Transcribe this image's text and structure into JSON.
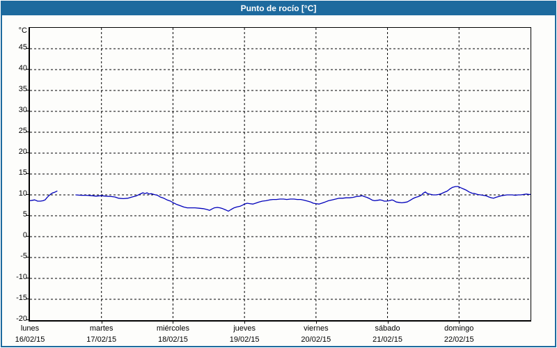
{
  "window": {
    "title": "Punto de rocío [°C]"
  },
  "chart_data": {
    "type": "line",
    "title": "Punto de rocío [°C]",
    "grid": {
      "style": "dashed",
      "color": "#000000"
    },
    "colors": {
      "frame": "#1d6a9e",
      "header_bg": "#1d6a9e",
      "header_text": "#ffffff",
      "line": "#0000bb",
      "plot_bg": "#fdfdfb",
      "axis": "#000000"
    },
    "y_axis": {
      "label": "°C",
      "range": [
        -20,
        50
      ],
      "ticks": [
        45,
        40,
        35,
        30,
        25,
        20,
        15,
        10,
        5,
        0,
        -5,
        -10,
        -15,
        -20
      ]
    },
    "x_axis": {
      "range_hours": [
        0,
        168
      ],
      "days": [
        {
          "name": "lunes",
          "date": "16/02/15"
        },
        {
          "name": "martes",
          "date": "17/02/15"
        },
        {
          "name": "miércoles",
          "date": "18/02/15"
        },
        {
          "name": "jueves",
          "date": "19/02/15"
        },
        {
          "name": "viernes",
          "date": "20/02/15"
        },
        {
          "name": "sábado",
          "date": "21/02/15"
        },
        {
          "name": "domingo",
          "date": "22/02/15"
        }
      ]
    },
    "series": [
      {
        "name": "Punto de rocío",
        "unit": "°C",
        "color": "#0000bb",
        "segments": [
          [
            [
              0,
              8.6
            ],
            [
              0.8,
              8.7
            ],
            [
              1.6,
              8.8
            ],
            [
              2.6,
              8.5
            ],
            [
              3.5,
              8.5
            ],
            [
              4.4,
              8.6
            ],
            [
              5.1,
              8.8
            ],
            [
              5.8,
              9.4
            ],
            [
              6.5,
              9.9
            ],
            [
              7.2,
              10.3
            ],
            [
              7.7,
              10.5
            ],
            [
              8.2,
              10.6
            ],
            [
              9.1,
              10.9
            ]
          ],
          [
            [
              15.4,
              10.0
            ],
            [
              17.3,
              9.9
            ],
            [
              18.9,
              9.9
            ],
            [
              20.8,
              9.8
            ],
            [
              22.2,
              9.7
            ],
            [
              23.8,
              9.8
            ],
            [
              25.5,
              9.7
            ],
            [
              27.3,
              9.6
            ],
            [
              28.5,
              9.5
            ],
            [
              29.7,
              9.2
            ],
            [
              31.3,
              9.1
            ],
            [
              32.9,
              9.2
            ],
            [
              34.3,
              9.5
            ],
            [
              35.5,
              9.7
            ],
            [
              36.7,
              10.1
            ],
            [
              37.9,
              10.5
            ],
            [
              38.6,
              10.3
            ],
            [
              39.3,
              10.5
            ],
            [
              40,
              10.2
            ],
            [
              40.7,
              10.3
            ],
            [
              41.6,
              10.1
            ],
            [
              42.8,
              9.9
            ],
            [
              43.7,
              9.5
            ],
            [
              44.9,
              9.2
            ],
            [
              46,
              8.8
            ],
            [
              47.2,
              8.5
            ],
            [
              48.1,
              8.1
            ],
            [
              49.3,
              7.7
            ],
            [
              50.5,
              7.4
            ],
            [
              51.6,
              7.1
            ],
            [
              52.8,
              6.9
            ],
            [
              54,
              6.9
            ],
            [
              55.4,
              6.9
            ],
            [
              56.8,
              6.8
            ],
            [
              58.2,
              6.7
            ],
            [
              59.4,
              6.5
            ],
            [
              60.3,
              6.3
            ],
            [
              61,
              6.6
            ],
            [
              61.9,
              6.9
            ],
            [
              62.9,
              7.0
            ],
            [
              63.8,
              6.9
            ],
            [
              64.7,
              6.7
            ],
            [
              65.7,
              6.4
            ],
            [
              66.6,
              6.1
            ],
            [
              67.5,
              6.5
            ],
            [
              68.5,
              6.9
            ],
            [
              69.4,
              7.1
            ],
            [
              70.6,
              7.3
            ],
            [
              71.5,
              7.6
            ],
            [
              72,
              7.8
            ],
            [
              72.9,
              8.0
            ],
            [
              73.8,
              7.9
            ],
            [
              74.8,
              7.8
            ],
            [
              75.7,
              8.0
            ],
            [
              76.9,
              8.3
            ],
            [
              78,
              8.5
            ],
            [
              79.2,
              8.6
            ],
            [
              80.4,
              8.8
            ],
            [
              81.6,
              8.9
            ],
            [
              82.7,
              8.9
            ],
            [
              83.9,
              9.0
            ],
            [
              85.1,
              9.0
            ],
            [
              86.2,
              8.9
            ],
            [
              87.4,
              9.0
            ],
            [
              88.6,
              9.0
            ],
            [
              89.7,
              8.9
            ],
            [
              90.9,
              8.9
            ],
            [
              92.1,
              8.7
            ],
            [
              93.2,
              8.5
            ],
            [
              94.2,
              8.3
            ],
            [
              95.1,
              8.0
            ],
            [
              96,
              7.9
            ],
            [
              97,
              7.8
            ],
            [
              97.9,
              8.0
            ],
            [
              99.1,
              8.3
            ],
            [
              100.2,
              8.6
            ],
            [
              101.4,
              8.8
            ],
            [
              102.6,
              9.0
            ],
            [
              103.8,
              9.2
            ],
            [
              104.9,
              9.2
            ],
            [
              106.1,
              9.3
            ],
            [
              107.3,
              9.3
            ],
            [
              108.4,
              9.4
            ],
            [
              109.6,
              9.6
            ],
            [
              110.8,
              9.7
            ],
            [
              111.5,
              9.8
            ],
            [
              112.2,
              9.6
            ],
            [
              113.1,
              9.4
            ],
            [
              114,
              9.1
            ],
            [
              115,
              8.7
            ],
            [
              115.7,
              8.6
            ],
            [
              116.6,
              8.7
            ],
            [
              117.5,
              8.8
            ],
            [
              118.2,
              8.7
            ],
            [
              118.9,
              8.5
            ],
            [
              119.6,
              8.5
            ],
            [
              120.6,
              8.6
            ],
            [
              121.5,
              8.8
            ],
            [
              122.2,
              8.6
            ],
            [
              122.9,
              8.3
            ],
            [
              123.8,
              8.2
            ],
            [
              124.8,
              8.1
            ],
            [
              125.7,
              8.2
            ],
            [
              126.6,
              8.3
            ],
            [
              127.6,
              8.7
            ],
            [
              128.5,
              9.1
            ],
            [
              129.4,
              9.4
            ],
            [
              130.4,
              9.6
            ],
            [
              131.3,
              9.9
            ],
            [
              132,
              10.4
            ],
            [
              132.7,
              10.7
            ],
            [
              133.2,
              10.4
            ],
            [
              133.9,
              10.2
            ],
            [
              134.6,
              10.1
            ],
            [
              135.3,
              10.0
            ],
            [
              136.2,
              10.0
            ],
            [
              137.2,
              10.1
            ],
            [
              138.1,
              10.3
            ],
            [
              139,
              10.6
            ],
            [
              140,
              10.9
            ],
            [
              140.9,
              11.4
            ],
            [
              141.8,
              11.8
            ],
            [
              142.8,
              12.0
            ],
            [
              143.7,
              12.0
            ],
            [
              144.6,
              11.7
            ],
            [
              145.6,
              11.4
            ],
            [
              146.5,
              11.1
            ],
            [
              147.4,
              10.7
            ],
            [
              148.4,
              10.4
            ],
            [
              149.3,
              10.3
            ],
            [
              150.2,
              10.1
            ],
            [
              151.2,
              10.0
            ],
            [
              152.1,
              9.9
            ],
            [
              153,
              9.8
            ],
            [
              154,
              9.5
            ],
            [
              154.9,
              9.3
            ],
            [
              155.6,
              9.2
            ],
            [
              156.3,
              9.4
            ],
            [
              157.3,
              9.6
            ],
            [
              158.2,
              9.8
            ],
            [
              159.1,
              9.9
            ],
            [
              160.1,
              10.0
            ],
            [
              161,
              10.0
            ],
            [
              161.9,
              10.0
            ],
            [
              162.9,
              9.9
            ],
            [
              163.8,
              10.0
            ],
            [
              164.7,
              10.0
            ],
            [
              165.7,
              10.1
            ],
            [
              166.6,
              10.2
            ],
            [
              167.5,
              10.1
            ],
            [
              168,
              10.1
            ]
          ]
        ]
      }
    ]
  }
}
